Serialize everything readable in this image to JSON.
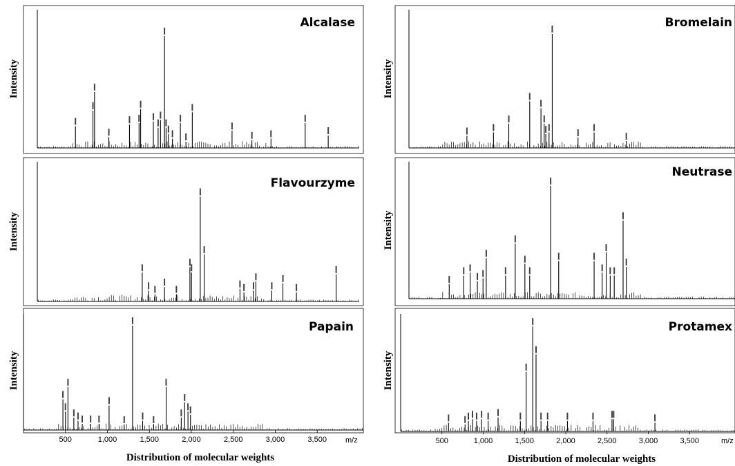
{
  "figure": {
    "y_axis_label": "Intensity",
    "x_axis_label": "Distribution of molecular weights",
    "x_unit": "m/z",
    "x_tick_labels": [
      "500",
      "1,000",
      "1,500",
      "2,000",
      "2,500",
      "3,000",
      "3,500"
    ]
  },
  "chart_data": [
    {
      "type": "line",
      "title": "Alcalase",
      "xlabel": "",
      "ylabel": "Intensity",
      "xlim": [
        0,
        4050
      ],
      "ylim": [
        0,
        4000
      ],
      "peaks": {
        "x": [
          480,
          700,
          720,
          900,
          1160,
          1280,
          1300,
          1460,
          1520,
          1550,
          1600,
          1620,
          1650,
          1700,
          1800,
          1870,
          1950,
          2450,
          2700,
          2940,
          3370,
          3660
        ],
        "y": [
          700,
          1200,
          1800,
          350,
          750,
          800,
          1250,
          850,
          650,
          900,
          3600,
          650,
          450,
          300,
          800,
          200,
          1150,
          550,
          250,
          300,
          800,
          400
        ]
      }
    },
    {
      "type": "line",
      "title": "Bromelain",
      "xlabel": "",
      "ylabel": "Intensity",
      "xlim": [
        0,
        4050
      ],
      "ylim": [
        0,
        7200
      ],
      "peaks": {
        "x": [
          720,
          1050,
          1240,
          1500,
          1640,
          1680,
          1700,
          1740,
          1780,
          2100,
          2300,
          2700
        ],
        "y": [
          700,
          900,
          1400,
          2700,
          2300,
          1400,
          800,
          900,
          6600,
          600,
          900,
          400
        ]
      }
    },
    {
      "type": "line",
      "title": "Flavourzyme",
      "xlabel": "",
      "ylabel": "Intensity",
      "xlim": [
        0,
        4050
      ],
      "ylim": [
        0,
        3600
      ],
      "peaks": {
        "x": [
          1320,
          1400,
          1480,
          1600,
          1750,
          1920,
          1940,
          2050,
          2100,
          2550,
          2600,
          2720,
          2750,
          2950,
          3090,
          3260,
          3760
        ],
        "y": [
          800,
          300,
          200,
          400,
          200,
          950,
          800,
          2900,
          1300,
          350,
          250,
          300,
          550,
          300,
          500,
          250,
          750
        ]
      }
    },
    {
      "type": "line",
      "title": "Neutrase",
      "xlabel": "",
      "ylabel": "Intensity",
      "xlim": [
        0,
        4050
      ],
      "ylim": [
        0,
        2200
      ],
      "peaks": {
        "x": [
          500,
          680,
          760,
          850,
          920,
          960,
          1200,
          1320,
          1440,
          1500,
          1760,
          1860,
          2300,
          2400,
          2450,
          2500,
          2550,
          2660,
          2700
        ],
        "y": [
          250,
          400,
          450,
          300,
          350,
          700,
          400,
          950,
          600,
          400,
          1950,
          650,
          650,
          450,
          800,
          400,
          400,
          1350,
          550
        ]
      }
    },
    {
      "type": "line",
      "title": "Papain",
      "xlabel": "Distribution of molecular weights",
      "ylabel": "Intensity",
      "xlim": [
        0,
        4050
      ],
      "ylim": [
        0,
        36000
      ],
      "x_ticks": [
        500,
        1000,
        1500,
        2000,
        2500,
        3000,
        3500
      ],
      "x_tick_labels": [
        "500",
        "1,000",
        "1,500",
        "2,000",
        "2,500",
        "3,000",
        "3,500"
      ],
      "x_unit": "m/z",
      "peaks": {
        "x": [
          470,
          500,
          530,
          600,
          650,
          700,
          800,
          900,
          1020,
          1200,
          1300,
          1420,
          1550,
          1700,
          1880,
          1920,
          1960,
          1990
        ],
        "y": [
          10000,
          6000,
          14000,
          4000,
          3000,
          2000,
          2000,
          2000,
          8000,
          1800,
          34000,
          3000,
          1800,
          14000,
          4000,
          9000,
          6000,
          5000
        ]
      }
    },
    {
      "type": "line",
      "title": "Protamex",
      "xlabel": "Distribution of molecular weights",
      "ylabel": "Intensity",
      "xlim": [
        0,
        4050
      ],
      "ylim": [
        0,
        32000
      ],
      "x_ticks": [
        500,
        1000,
        1500,
        2000,
        2500,
        3000,
        3500
      ],
      "x_tick_labels": [
        "500",
        "1,000",
        "1,500",
        "2,000",
        "2,500",
        "3,000",
        "3,500"
      ],
      "x_unit": "m/z",
      "peaks": {
        "x": [
          580,
          780,
          820,
          870,
          920,
          980,
          1060,
          1180,
          1450,
          1520,
          1600,
          1640,
          1700,
          1780,
          2020,
          2330,
          2560,
          2580,
          3080
        ],
        "y": [
          2500,
          2000,
          3000,
          3500,
          3000,
          3500,
          3000,
          4000,
          3000,
          17000,
          30000,
          22000,
          3000,
          3000,
          3000,
          3000,
          3500,
          3500,
          2500
        ]
      }
    }
  ]
}
